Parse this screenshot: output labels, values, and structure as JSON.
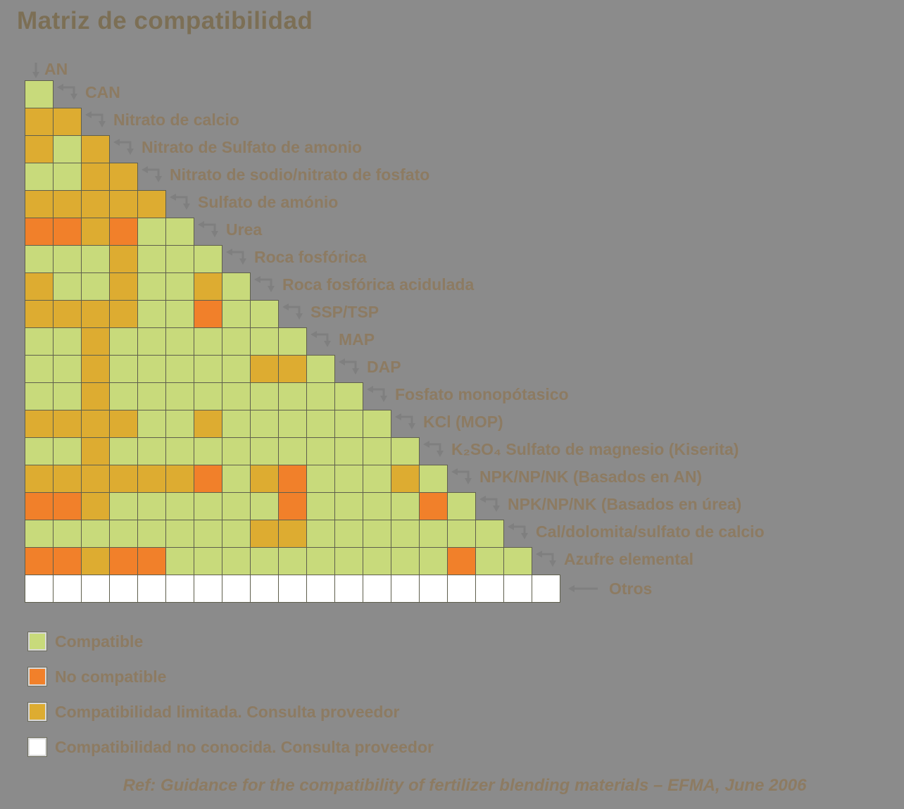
{
  "title": "Matriz de compatibilidad",
  "footer": "Ref: Guidance for the compatibility of fertilizer blending materials – EFMA, June 2006",
  "materials": [
    "AN",
    "CAN",
    "Nitrato de calcio",
    "Nitrato de Sulfato de amonio",
    "Nitrato de sodio/nitrato de fosfato",
    "Sulfato de amónio",
    "Urea",
    "Roca fosfórica",
    "Roca fosfórica acidulada",
    "SSP/TSP",
    "MAP",
    "DAP",
    "Fosfato monopótasico",
    "KCl (MOP)",
    "K₂SO₄ Sulfato de magnesio (Kiserita)",
    "NPK/NP/NK (Basados en AN)",
    "NPK/NP/NK (Basados en úrea)",
    "Cal/dolomita/sulfato de calcio",
    "Azufre elemental",
    "Otros"
  ],
  "legend": [
    {
      "code": "G",
      "label": "Compatible"
    },
    {
      "code": "O",
      "label": "No compatible"
    },
    {
      "code": "Y",
      "label": "Compatibilidad limitada. Consulta proveedor"
    },
    {
      "code": "W",
      "label": "Compatibilidad no conocida. Consulta proveedor"
    }
  ],
  "colors": {
    "G": "#c8da7b",
    "O": "#f1802a",
    "Y": "#ddac31",
    "W": "#ffffff",
    "grid_border": "#5f5f4d",
    "background": "#8b8b8b",
    "label_text": "#8d7b62",
    "title_text": "#7c6f55",
    "arrow": "#7f7f7f"
  },
  "chart_data": {
    "type": "heatmap",
    "title": "Matriz de compatibilidad",
    "layout": "lower-triangular compatibility matrix; display row k lists material k+1 versus columns = materials 1..k; diagonal excluded; legend below-left",
    "cell_codes": {
      "G": "Compatible",
      "O": "No compatible",
      "Y": "Compatibilidad limitada. Consulta proveedor",
      "W": "Compatibilidad no conocida. Consulta proveedor"
    },
    "columns": [
      "AN",
      "CAN",
      "Nitrato de calcio",
      "Nitrato de Sulfato de amonio",
      "Nitrato de sodio/nitrato de fosfato",
      "Sulfato de amónio",
      "Urea",
      "Roca fosfórica",
      "Roca fosfórica acidulada",
      "SSP/TSP",
      "MAP",
      "DAP",
      "Fosfato monopótasico",
      "KCl (MOP)",
      "K₂SO₄ Sulfato de magnesio (Kiserita)",
      "NPK/NP/NK (Basados en AN)",
      "NPK/NP/NK (Basados en úrea)",
      "Cal/dolomita/sulfato de calcio",
      "Azufre elemental"
    ],
    "rows": [
      {
        "material": "CAN",
        "cells": [
          "G"
        ]
      },
      {
        "material": "Nitrato de calcio",
        "cells": [
          "Y",
          "Y"
        ]
      },
      {
        "material": "Nitrato de Sulfato de amonio",
        "cells": [
          "Y",
          "G",
          "Y"
        ]
      },
      {
        "material": "Nitrato de sodio/nitrato de fosfato",
        "cells": [
          "G",
          "G",
          "Y",
          "Y"
        ]
      },
      {
        "material": "Sulfato de amónio",
        "cells": [
          "Y",
          "Y",
          "Y",
          "Y",
          "Y"
        ]
      },
      {
        "material": "Urea",
        "cells": [
          "O",
          "O",
          "Y",
          "O",
          "G",
          "G"
        ]
      },
      {
        "material": "Roca fosfórica",
        "cells": [
          "G",
          "G",
          "G",
          "Y",
          "G",
          "G",
          "G"
        ]
      },
      {
        "material": "Roca fosfórica acidulada",
        "cells": [
          "Y",
          "G",
          "G",
          "Y",
          "G",
          "G",
          "Y",
          "G"
        ]
      },
      {
        "material": "SSP/TSP",
        "cells": [
          "Y",
          "Y",
          "Y",
          "Y",
          "G",
          "G",
          "O",
          "G",
          "G"
        ]
      },
      {
        "material": "MAP",
        "cells": [
          "G",
          "G",
          "Y",
          "G",
          "G",
          "G",
          "G",
          "G",
          "G",
          "G"
        ]
      },
      {
        "material": "DAP",
        "cells": [
          "G",
          "G",
          "Y",
          "G",
          "G",
          "G",
          "G",
          "G",
          "Y",
          "Y",
          "G"
        ]
      },
      {
        "material": "Fosfato monopótasico",
        "cells": [
          "G",
          "G",
          "Y",
          "G",
          "G",
          "G",
          "G",
          "G",
          "G",
          "G",
          "G",
          "G"
        ]
      },
      {
        "material": "KCl (MOP)",
        "cells": [
          "Y",
          "Y",
          "Y",
          "Y",
          "G",
          "G",
          "Y",
          "G",
          "G",
          "G",
          "G",
          "G",
          "G"
        ]
      },
      {
        "material": "K₂SO₄ Sulfato de magnesio (Kiserita)",
        "cells": [
          "G",
          "G",
          "Y",
          "G",
          "G",
          "G",
          "G",
          "G",
          "G",
          "G",
          "G",
          "G",
          "G",
          "G"
        ]
      },
      {
        "material": "NPK/NP/NK (Basados en AN)",
        "cells": [
          "Y",
          "Y",
          "Y",
          "Y",
          "Y",
          "Y",
          "O",
          "G",
          "Y",
          "O",
          "G",
          "G",
          "G",
          "Y",
          "G"
        ]
      },
      {
        "material": "NPK/NP/NK (Basados en úrea)",
        "cells": [
          "O",
          "O",
          "Y",
          "G",
          "G",
          "G",
          "G",
          "G",
          "G",
          "O",
          "G",
          "G",
          "G",
          "G",
          "O",
          "G"
        ]
      },
      {
        "material": "Cal/dolomita/sulfato de calcio",
        "cells": [
          "G",
          "G",
          "G",
          "G",
          "G",
          "G",
          "G",
          "G",
          "Y",
          "Y",
          "G",
          "G",
          "G",
          "G",
          "G",
          "G",
          "G"
        ]
      },
      {
        "material": "Azufre elemental",
        "cells": [
          "O",
          "O",
          "Y",
          "O",
          "O",
          "G",
          "G",
          "G",
          "G",
          "G",
          "G",
          "G",
          "G",
          "G",
          "G",
          "O",
          "G",
          "G"
        ]
      },
      {
        "material": "Otros",
        "cells": [
          "W",
          "W",
          "W",
          "W",
          "W",
          "W",
          "W",
          "W",
          "W",
          "W",
          "W",
          "W",
          "W",
          "W",
          "W",
          "W",
          "W",
          "W",
          "W"
        ]
      }
    ]
  }
}
